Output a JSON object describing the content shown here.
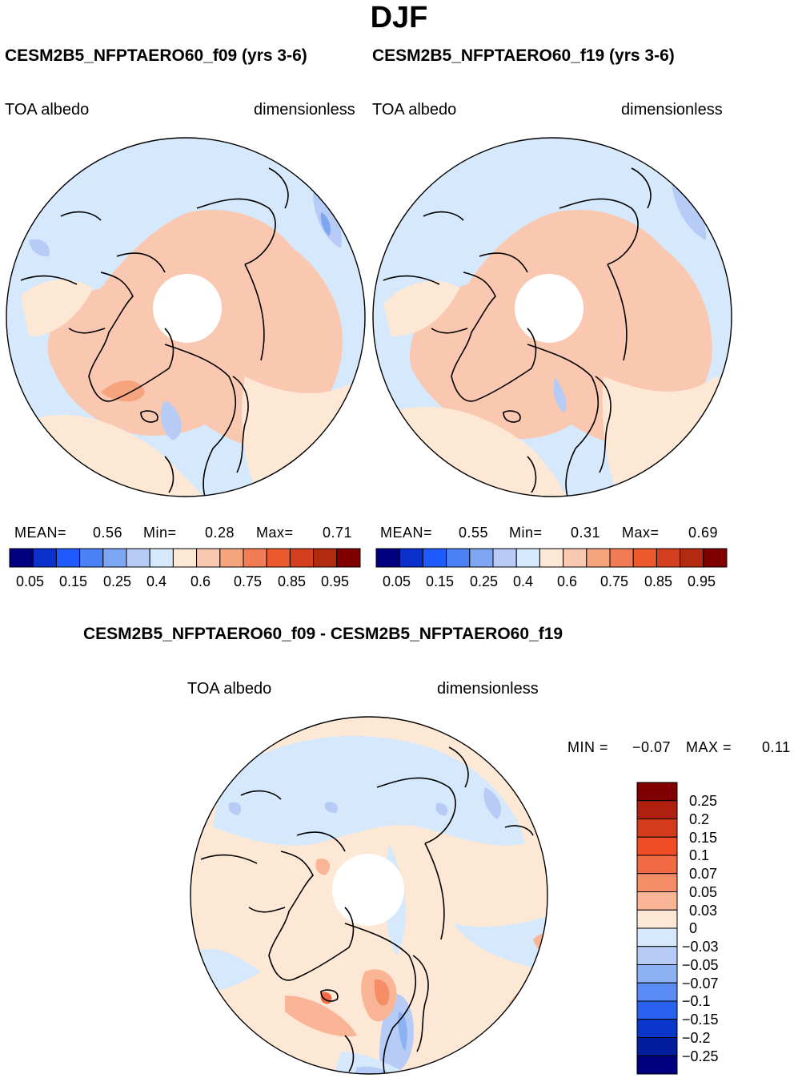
{
  "figure": {
    "season": "DJF"
  },
  "panels": [
    {
      "id": "f09",
      "title": "CESM2B5_NFPTAERO60_f09 (yrs 3-6)",
      "left_label": "TOA albedo",
      "right_label": "dimensionless",
      "stats": {
        "mean_label": "MEAN=",
        "mean_value": "0.56",
        "min_label": "Min=",
        "min_value": "0.28",
        "max_label": "Max=",
        "max_value": "0.71"
      },
      "colorbar_ticks": [
        "0.05",
        "0.15",
        "0.25",
        "0.4",
        "0.6",
        "0.75",
        "0.85",
        "0.95"
      ]
    },
    {
      "id": "f19",
      "title": "CESM2B5_NFPTAERO60_f19 (yrs 3-6)",
      "left_label": "TOA albedo",
      "right_label": "dimensionless",
      "stats": {
        "mean_label": "MEAN=",
        "mean_value": "0.55",
        "min_label": "Min=",
        "min_value": "0.31",
        "max_label": "Max=",
        "max_value": "0.69"
      },
      "colorbar_ticks": [
        "0.05",
        "0.15",
        "0.25",
        "0.4",
        "0.6",
        "0.75",
        "0.85",
        "0.95"
      ]
    }
  ],
  "difference": {
    "title": "CESM2B5_NFPTAERO60_f09 - CESM2B5_NFPTAERO60_f19",
    "left_label": "TOA albedo",
    "right_label": "dimensionless",
    "stats": {
      "min_label": "MIN =",
      "min_value": "−0.07",
      "max_label": "MAX =",
      "max_value": "0.11"
    },
    "colorbar_ticks": [
      "0.25",
      "0.2",
      "0.15",
      "0.1",
      "0.07",
      "0.05",
      "0.03",
      "0",
      "−0.03",
      "−0.05",
      "−0.07",
      "−0.1",
      "−0.15",
      "−0.2",
      "−0.25"
    ]
  },
  "colors": {
    "abs_scale": [
      "#000080",
      "#0b30cc",
      "#1f5cff",
      "#4b82f7",
      "#7fa6f2",
      "#b6ccf6",
      "#d6e8fb",
      "#fde8d6",
      "#fac8b0",
      "#f5a47e",
      "#f27c55",
      "#ea5a2e",
      "#d4401d",
      "#b22a10",
      "#800000"
    ],
    "diff_scale": [
      "#800000",
      "#b02010",
      "#d43b1c",
      "#f04c25",
      "#f26a44",
      "#f58e66",
      "#f9b595",
      "#fde8d6",
      "#d6e8fb",
      "#b6ccf6",
      "#8cb2f3",
      "#5b8cf5",
      "#2a62f0",
      "#0b36cc",
      "#021e9e",
      "#000080"
    ],
    "ocean_low": "#d6e8fb",
    "land_mid": "#fde8d6",
    "land_high": "#fac8b0"
  }
}
